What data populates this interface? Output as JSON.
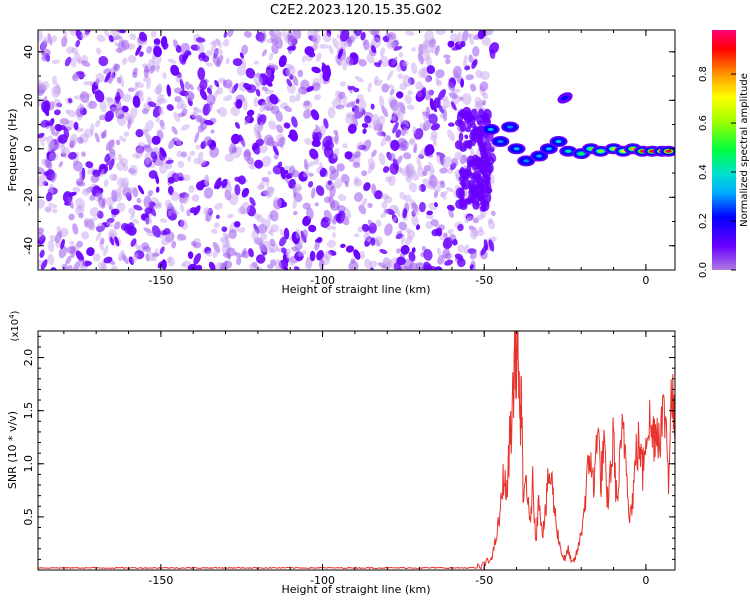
{
  "chart_data": [
    {
      "type": "heatmap",
      "title": "C2E2.2023.120.15.35.G02",
      "xlabel": "Height of straight line (km)",
      "ylabel": "Frequency (Hz)",
      "xlim": [
        -188,
        9
      ],
      "ylim": [
        -50,
        49
      ],
      "x_ticks": [
        -150,
        -100,
        -50,
        0
      ],
      "y_ticks": [
        -40,
        -20,
        0,
        20,
        40
      ],
      "noise_region_x": [
        -188,
        -50
      ],
      "noise_amplitude_range": [
        0.0,
        0.15
      ],
      "signal_track": [
        {
          "x": -48,
          "y": 8,
          "amp": 0.35
        },
        {
          "x": -45,
          "y": 3,
          "amp": 0.3
        },
        {
          "x": -42,
          "y": 9,
          "amp": 0.3
        },
        {
          "x": -40,
          "y": 0,
          "amp": 0.35
        },
        {
          "x": -37,
          "y": -5,
          "amp": 0.3
        },
        {
          "x": -33,
          "y": -3,
          "amp": 0.32
        },
        {
          "x": -30,
          "y": 0,
          "amp": 0.35
        },
        {
          "x": -27,
          "y": 3,
          "amp": 0.38
        },
        {
          "x": -24,
          "y": -1,
          "amp": 0.42
        },
        {
          "x": -20,
          "y": -2,
          "amp": 0.5
        },
        {
          "x": -17,
          "y": 0,
          "amp": 0.55
        },
        {
          "x": -14,
          "y": -1,
          "amp": 0.6
        },
        {
          "x": -10,
          "y": 0,
          "amp": 0.65
        },
        {
          "x": -7,
          "y": -1,
          "amp": 0.7
        },
        {
          "x": -4,
          "y": 0,
          "amp": 0.8
        },
        {
          "x": -1,
          "y": -1,
          "amp": 0.9
        },
        {
          "x": 2,
          "y": -1,
          "amp": 0.93
        },
        {
          "x": 5,
          "y": -1,
          "amp": 0.95
        },
        {
          "x": 7,
          "y": -1,
          "amp": 0.95
        }
      ],
      "outlier_blob": {
        "x": -25,
        "y": 21,
        "amp": 0.25
      },
      "colorbar": {
        "label": "Normalized spectral amplitude",
        "range": [
          0.0,
          0.98
        ],
        "ticks": [
          "0.0",
          "0.2",
          "0.4",
          "0.6",
          "0.8"
        ]
      }
    },
    {
      "type": "line",
      "xlabel": "Height of straight line (km)",
      "ylabel": "SNR (10 * v/v)",
      "y_exponent_label": "(x10",
      "y_exponent_power": "4",
      "y_exponent_close": ")",
      "xlim": [
        -188,
        9
      ],
      "ylim": [
        0,
        2.25
      ],
      "x_ticks": [
        -150,
        -100,
        -50,
        0
      ],
      "y_ticks": [
        "0.5",
        "1.0",
        "1.5",
        "2.0"
      ],
      "series_color": "#e8322c",
      "baseline_region": {
        "x": [
          -188,
          -52
        ],
        "y": 0.02
      },
      "series": [
        {
          "x": [
            -52,
            -50,
            -48,
            -47,
            -46,
            -45,
            -44,
            -43,
            -42,
            -41,
            -40.5,
            -40,
            -39.5,
            -39,
            -38.5,
            -38,
            -37,
            -36,
            -35,
            -34,
            -33,
            -32,
            -31,
            -30,
            -29,
            -28,
            -27,
            -26,
            -25,
            -24,
            -23,
            -22,
            -21,
            -20,
            -19,
            -18,
            -17,
            -16,
            -15,
            -14,
            -13,
            -12,
            -11,
            -10,
            -9,
            -8,
            -7,
            -6,
            -5,
            -4,
            -3,
            -2,
            -1,
            0,
            1,
            2,
            3,
            4,
            5,
            6,
            7,
            8,
            9
          ],
          "y": [
            0.02,
            0.05,
            0.1,
            0.2,
            0.35,
            0.55,
            0.9,
            0.7,
            1.3,
            1.6,
            2.25,
            1.9,
            2.25,
            1.2,
            1.8,
            0.6,
            0.9,
            0.4,
            0.8,
            0.3,
            0.7,
            0.35,
            0.55,
            0.9,
            0.8,
            0.5,
            0.3,
            0.15,
            0.1,
            0.2,
            0.05,
            0.1,
            0.2,
            0.35,
            0.6,
            0.9,
            1.1,
            0.7,
            1.5,
            0.8,
            1.2,
            0.6,
            0.9,
            1.25,
            0.6,
            1.0,
            1.35,
            1.0,
            0.5,
            0.7,
            1.1,
            1.2,
            0.9,
            1.35,
            1.4,
            1.25,
            1.35,
            1.3,
            1.4,
            1.5,
            0.9,
            1.7,
            1.2
          ]
        }
      ]
    }
  ]
}
